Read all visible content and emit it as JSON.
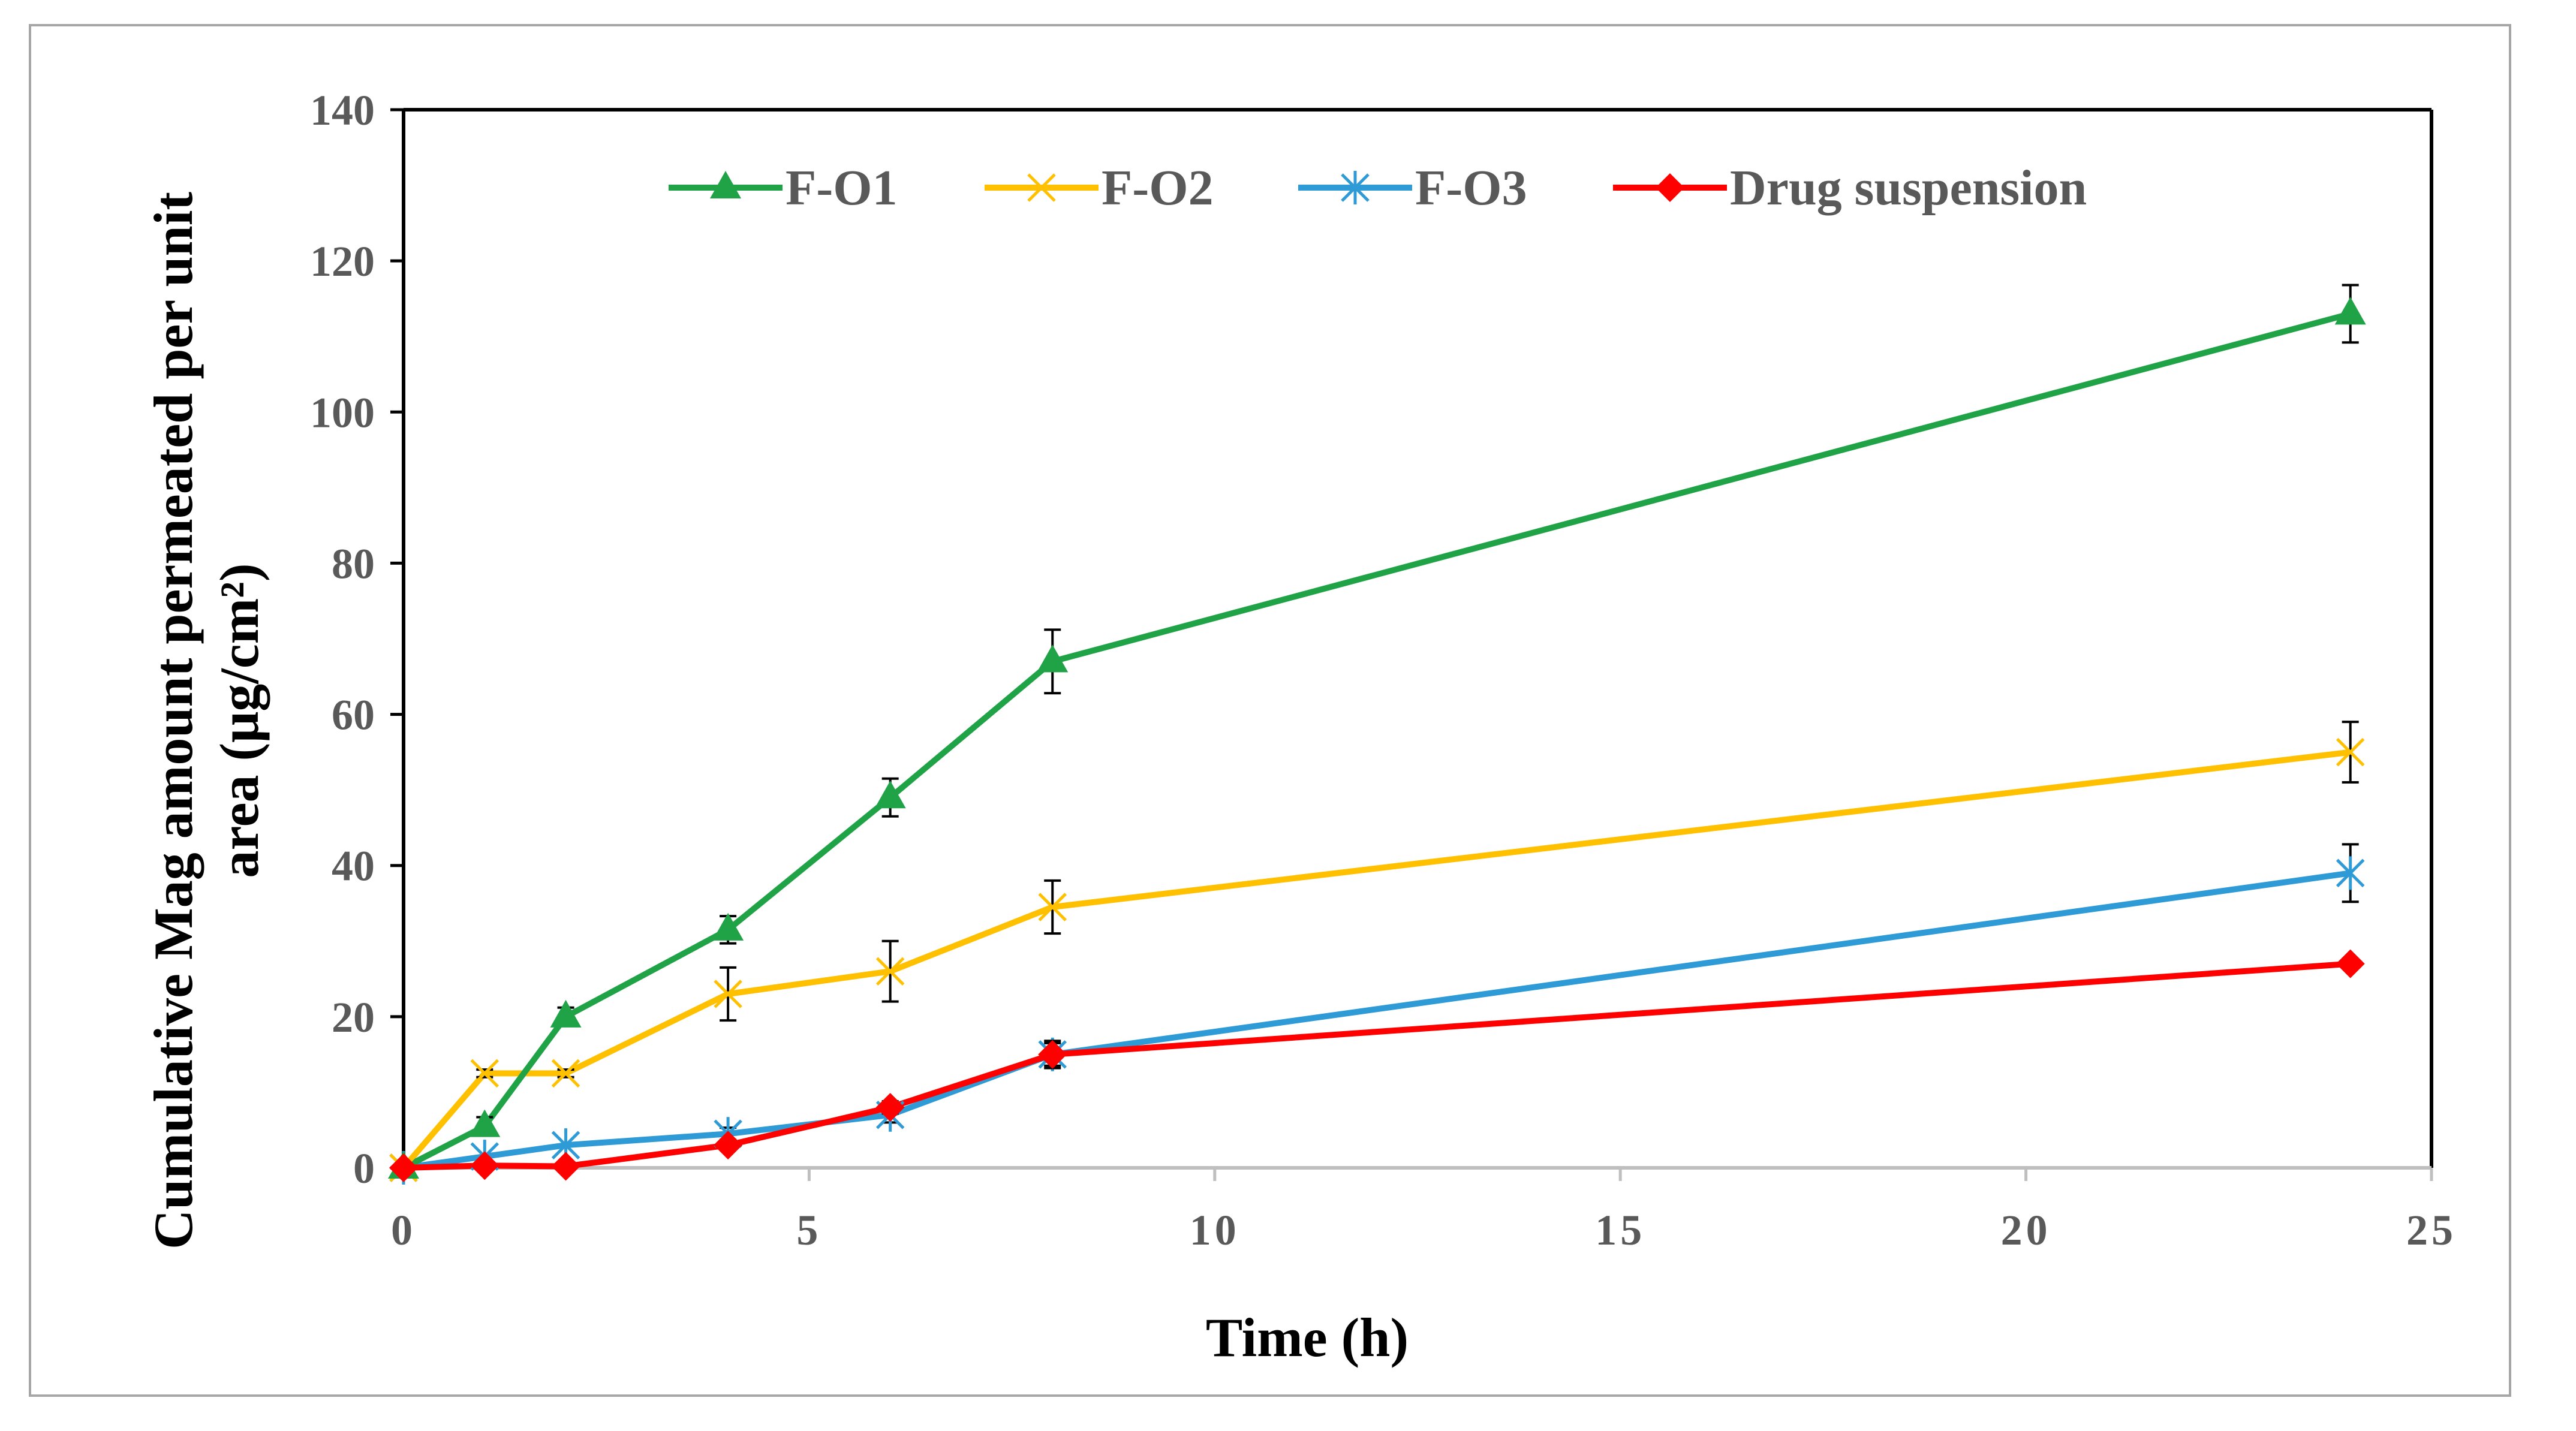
{
  "chart_data": {
    "type": "line",
    "title": "",
    "xlabel": "Time (h)",
    "ylabel_lines": [
      "Cumulative Mag amount permeated per unit",
      "area  (μg/cm²)"
    ],
    "xlim": [
      0,
      25
    ],
    "ylim": [
      0,
      140
    ],
    "xticks": [
      0,
      5,
      10,
      15,
      20,
      25
    ],
    "yticks": [
      0,
      20,
      40,
      60,
      80,
      100,
      120,
      140
    ],
    "xtick_labels": [
      "0",
      "5",
      "10",
      "15",
      "20",
      "25"
    ],
    "ytick_labels": [
      "0",
      "20",
      "40",
      "60",
      "80",
      "100",
      "120",
      "140"
    ],
    "grid": false,
    "legend_position": "top",
    "x": [
      0,
      1,
      2,
      4,
      6,
      8,
      24
    ],
    "series": [
      {
        "name": "F-O1",
        "color": "#1fa346",
        "marker": "triangle",
        "values": [
          0,
          5.5,
          20,
          31.5,
          49,
          67,
          113
        ],
        "errors": [
          0,
          1.2,
          1.2,
          1.8,
          2.5,
          4.2,
          3.8
        ]
      },
      {
        "name": "F-O2",
        "color": "#ffc000",
        "marker": "x",
        "values": [
          0,
          12.5,
          12.5,
          23,
          26,
          34.5,
          55
        ],
        "errors": [
          0,
          0.5,
          0.5,
          3.5,
          4,
          3.5,
          4
        ]
      },
      {
        "name": "F-O3",
        "color": "#2e9bd6",
        "marker": "star",
        "values": [
          0,
          1.5,
          3,
          4.5,
          7,
          15,
          39
        ],
        "errors": [
          0,
          0.3,
          0.3,
          0.8,
          1,
          1.5,
          3.8
        ]
      },
      {
        "name": "Drug suspension",
        "color": "#ff0000",
        "marker": "diamond",
        "values": [
          0,
          0.3,
          0.2,
          3,
          8,
          15,
          27
        ],
        "errors": [
          0,
          0.3,
          0.3,
          0.5,
          0.8,
          1.8,
          0.5
        ]
      }
    ]
  }
}
